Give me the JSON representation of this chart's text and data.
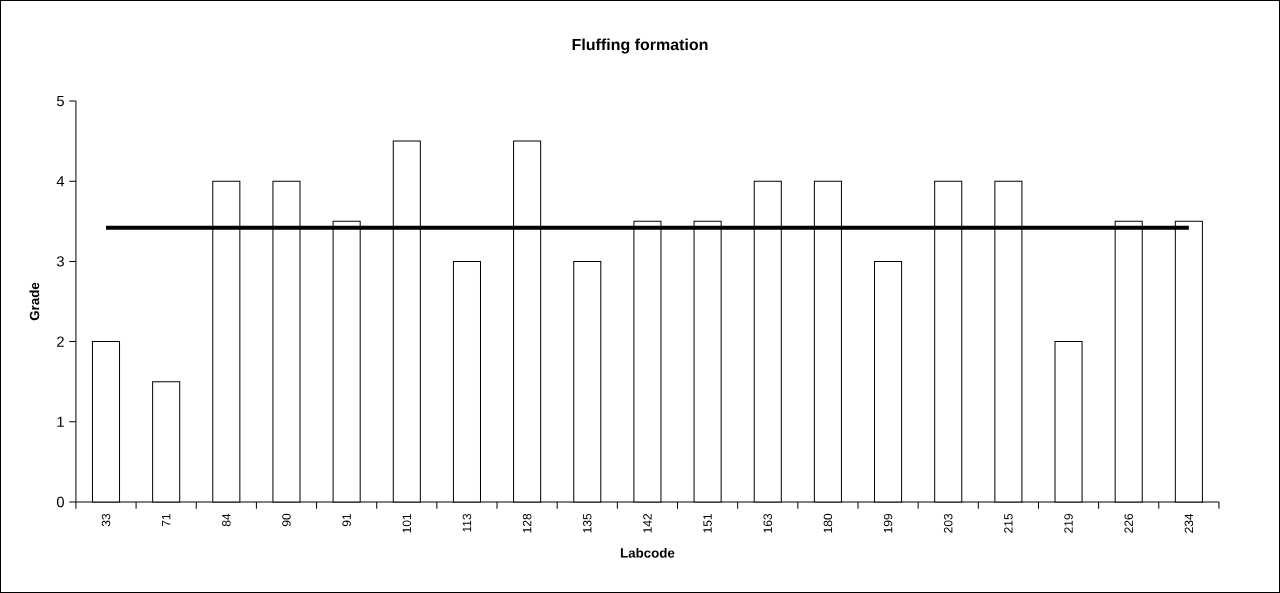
{
  "chart_data": {
    "type": "bar",
    "title": "Fluffing formation",
    "xlabel": "Labcode",
    "ylabel": "Grade",
    "categories": [
      "33",
      "71",
      "84",
      "90",
      "91",
      "101",
      "113",
      "128",
      "135",
      "142",
      "151",
      "163",
      "180",
      "199",
      "203",
      "215",
      "219",
      "226",
      "234"
    ],
    "values": [
      2,
      1.5,
      4,
      4,
      3.5,
      4.5,
      3,
      4.5,
      3,
      3.5,
      3.5,
      4,
      4,
      3,
      4,
      4,
      2,
      3.5,
      3.5
    ],
    "color": "#ffffff",
    "ylim": [
      0,
      5
    ],
    "yticks": [
      0,
      1,
      2,
      3,
      4,
      5
    ],
    "grid": false,
    "ref_lines": [
      {
        "axis": "y",
        "value": 3.42,
        "color": "#000000"
      }
    ]
  }
}
